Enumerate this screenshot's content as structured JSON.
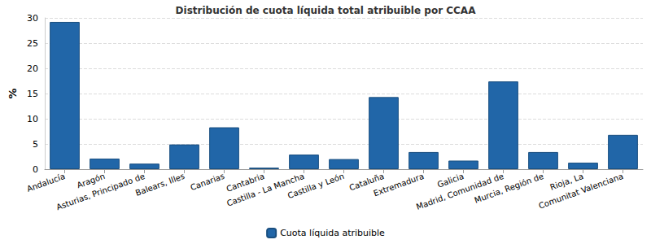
{
  "chart_data": {
    "type": "bar",
    "title": "Distribución de cuota líquida total atribuible por CCAA",
    "y_label": "%",
    "categories": [
      "Andalucía",
      "Aragón",
      "Asturias, Principado de",
      "Balears, Illes",
      "Canarias",
      "Cantabria",
      "Castilla - La Mancha",
      "Castilla y León",
      "Cataluña",
      "Extremadura",
      "Galicia",
      "Madrid, Comunidad de",
      "Murcia, Región de",
      "Rioja, La",
      "Comunitat Valenciana"
    ],
    "series": [
      {
        "name": "Cuota líquida atribuible",
        "color": "#2166a8",
        "values": [
          29.2,
          2.1,
          1.1,
          4.9,
          8.3,
          0.3,
          2.9,
          2.0,
          14.3,
          3.4,
          1.7,
          17.4,
          3.4,
          1.3,
          6.8
        ]
      }
    ],
    "ylim": [
      0,
      30
    ],
    "yticks": [
      0,
      5,
      10,
      15,
      20,
      25,
      30
    ],
    "grid": true,
    "legend": "bottom"
  }
}
